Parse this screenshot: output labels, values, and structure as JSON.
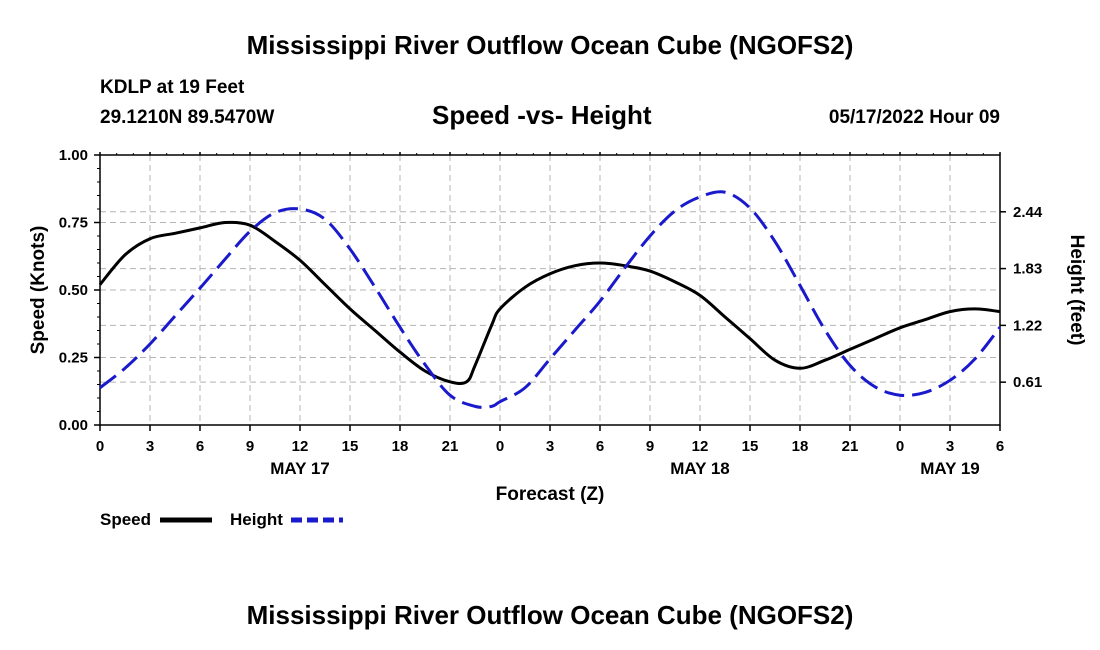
{
  "header": {
    "title": "Mississippi River Outflow Ocean Cube (NGOFS2)",
    "station": "KDLP at 19 Feet",
    "coords": "29.1210N  89.5470W",
    "subtitle": "Speed -vs- Height",
    "datetime": "05/17/2022 Hour 09"
  },
  "footer": {
    "title": "Mississippi River Outflow Ocean Cube (NGOFS2)"
  },
  "colors": {
    "speed": "#000000",
    "height": "#1a1acc",
    "grid": "#b4b4b4"
  },
  "chart_data": {
    "type": "line",
    "title": "Speed -vs- Height",
    "xlabel": "Forecast (Z)",
    "ylabel": "Speed (Knots)",
    "y2label": "Height (feet)",
    "x_range_hours": [
      0,
      54
    ],
    "ylim": [
      0,
      1.0
    ],
    "y2lim": [
      0.15,
      3.05
    ],
    "x_tick_hours": [
      0,
      3,
      6,
      9,
      12,
      15,
      18,
      21,
      24,
      27,
      30,
      33,
      36,
      39,
      42,
      45,
      48,
      51,
      54
    ],
    "x_tick_labels": [
      "0",
      "3",
      "6",
      "9",
      "12",
      "15",
      "18",
      "21",
      "0",
      "3",
      "6",
      "9",
      "12",
      "15",
      "18",
      "21",
      "0",
      "3",
      "6"
    ],
    "date_labels": [
      {
        "hour": 12,
        "label": "MAY 17"
      },
      {
        "hour": 36,
        "label": "MAY 18"
      },
      {
        "hour": 51,
        "label": "MAY 19"
      }
    ],
    "y_ticks": [
      0.0,
      0.25,
      0.5,
      0.75,
      1.0
    ],
    "y_tick_labels": [
      "0.00",
      "0.25",
      "0.50",
      "0.75",
      "1.00"
    ],
    "y2_ticks": [
      0.61,
      1.22,
      1.83,
      2.44
    ],
    "y2_tick_labels": [
      "0.61",
      "1.22",
      "1.83",
      "2.44"
    ],
    "grid": true,
    "legend": {
      "placement": "bottom-left",
      "items": [
        "Speed",
        "Height"
      ]
    },
    "series": [
      {
        "name": "Speed",
        "axis": "left",
        "style": "solid",
        "x": [
          0,
          1.5,
          3,
          4.5,
          6,
          7.5,
          9,
          10.5,
          12,
          13.5,
          15,
          16.5,
          18,
          19.5,
          21,
          22,
          22.5,
          23.5,
          24,
          25.5,
          27,
          28.5,
          30,
          31.5,
          33,
          34.5,
          36,
          37.5,
          39,
          40.5,
          42,
          43.5,
          45,
          46.5,
          48,
          49.5,
          51,
          52.5,
          54
        ],
        "values": [
          0.52,
          0.63,
          0.69,
          0.71,
          0.73,
          0.75,
          0.74,
          0.68,
          0.61,
          0.52,
          0.43,
          0.35,
          0.27,
          0.2,
          0.16,
          0.16,
          0.22,
          0.37,
          0.43,
          0.51,
          0.56,
          0.59,
          0.6,
          0.59,
          0.57,
          0.53,
          0.48,
          0.4,
          0.32,
          0.24,
          0.21,
          0.24,
          0.28,
          0.32,
          0.36,
          0.39,
          0.42,
          0.43,
          0.42
        ]
      },
      {
        "name": "Height",
        "axis": "right",
        "style": "dashed",
        "x": [
          0,
          1.5,
          3,
          4.5,
          6,
          7.5,
          9,
          10.5,
          12,
          13.5,
          15,
          16.5,
          18,
          19.5,
          21,
          22.5,
          23.5,
          24,
          25.5,
          27,
          28.5,
          30,
          31.5,
          33,
          34.5,
          36,
          37.5,
          39,
          40.5,
          42,
          43.5,
          45,
          46.5,
          48,
          49.5,
          51,
          52.5,
          54
        ],
        "values": [
          0.55,
          0.76,
          1.02,
          1.32,
          1.62,
          1.93,
          2.23,
          2.43,
          2.47,
          2.36,
          2.04,
          1.63,
          1.2,
          0.8,
          0.47,
          0.35,
          0.35,
          0.4,
          0.55,
          0.86,
          1.17,
          1.48,
          1.84,
          2.18,
          2.45,
          2.6,
          2.65,
          2.48,
          2.12,
          1.65,
          1.17,
          0.79,
          0.56,
          0.47,
          0.5,
          0.63,
          0.86,
          1.2
        ]
      }
    ]
  }
}
